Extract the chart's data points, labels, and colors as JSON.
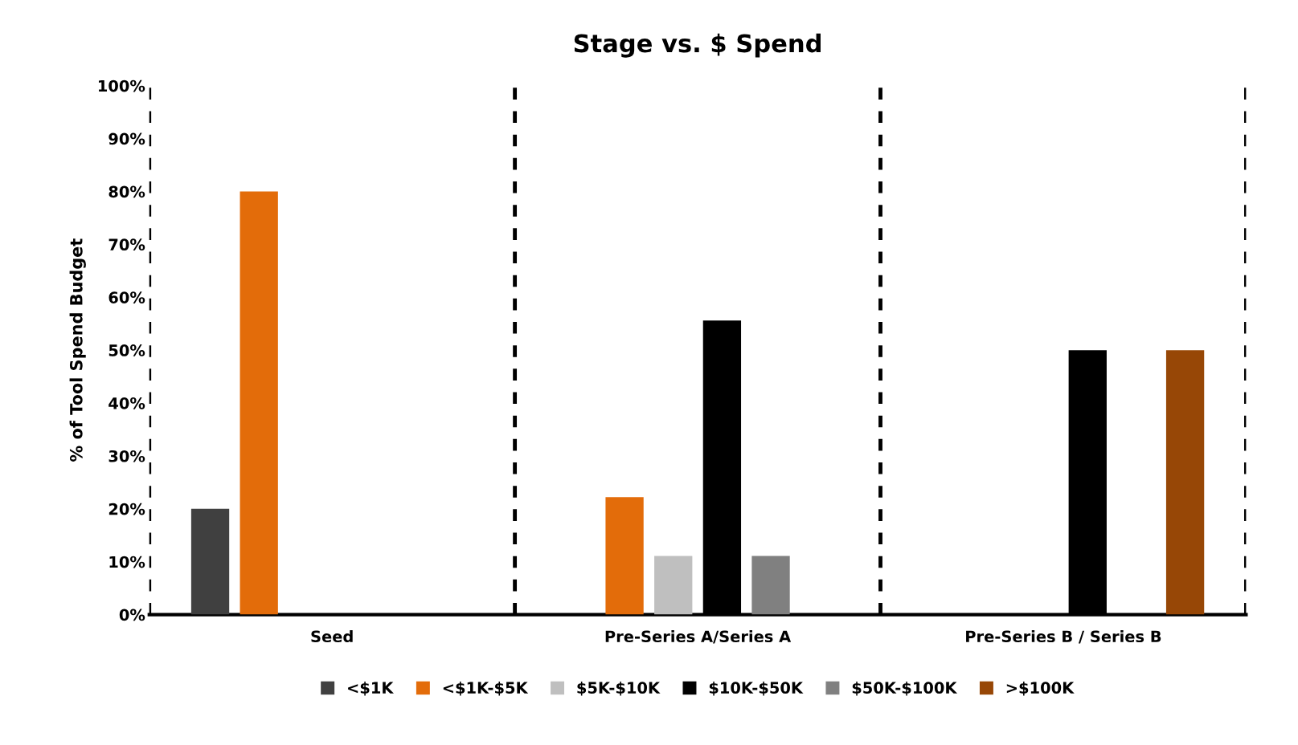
{
  "chart_data": {
    "type": "bar",
    "title": "Stage vs. $ Spend",
    "ylabel": "% of Tool Spend Budget",
    "categories": [
      "Seed",
      "Pre-Series A/Series A",
      "Pre-Series B / Series B"
    ],
    "series": [
      {
        "name": "<$1K",
        "color": "#404040",
        "values": [
          20,
          null,
          null
        ]
      },
      {
        "name": "<$1K-$5K",
        "color": "#e36c0a",
        "values": [
          80,
          22.2,
          null
        ]
      },
      {
        "name": "$5K-$10K",
        "color": "#bfbfbf",
        "values": [
          null,
          11.1,
          null
        ]
      },
      {
        "name": "$10K-$50K",
        "color": "#000000",
        "values": [
          null,
          55.6,
          50
        ]
      },
      {
        "name": "$50K-$100K",
        "color": "#808080",
        "values": [
          null,
          11.1,
          null
        ]
      },
      {
        "name": ">$100K",
        "color": "#974706",
        "values": [
          null,
          null,
          50
        ]
      }
    ],
    "ylim": [
      0,
      100
    ],
    "yticks": [
      {
        "value": 0,
        "label": "0%"
      },
      {
        "value": 10,
        "label": "10%"
      },
      {
        "value": 20,
        "label": "20%"
      },
      {
        "value": 30,
        "label": "30%"
      },
      {
        "value": 40,
        "label": "40%"
      },
      {
        "value": 50,
        "label": "50%"
      },
      {
        "value": 60,
        "label": "60%"
      },
      {
        "value": 70,
        "label": "70%"
      },
      {
        "value": 80,
        "label": "80%"
      },
      {
        "value": 90,
        "label": "90%"
      },
      {
        "value": 100,
        "label": "100%"
      }
    ],
    "grid": "x",
    "legend": "bottom"
  }
}
